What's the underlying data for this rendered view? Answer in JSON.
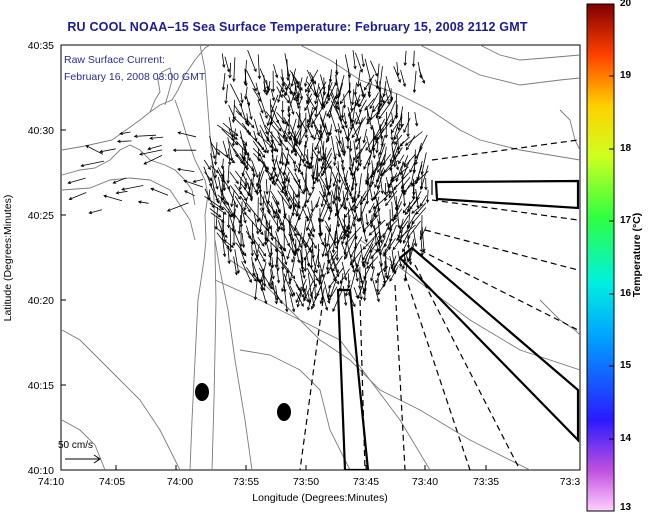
{
  "title": "RU COOL  NOAA–15  Sea Surface Temperature:  February 15, 2008 2112 GMT",
  "info": {
    "line1": "Raw Surface Current:",
    "line2": "February 16, 2008 03:00 GMT"
  },
  "axes": {
    "xlabel": "Longitude (Degrees:Minutes)",
    "ylabel": "Latitude (Degrees:Minutes)",
    "x_ticks": [
      "74:10",
      "74:05",
      "74:00",
      "73:55",
      "73:50",
      "73:45",
      "73:40",
      "73:35",
      "73:3"
    ],
    "y_ticks": [
      "40:35",
      "40:30",
      "40:25",
      "40:20",
      "40:15",
      "40:10"
    ]
  },
  "scale": {
    "label": "50 cm/s"
  },
  "colorbar": {
    "label": "Temperature (°C)",
    "min": 13,
    "max": 20,
    "ticks": [
      "20",
      "19",
      "18",
      "17",
      "16",
      "15",
      "14",
      "13"
    ]
  },
  "colors": {
    "title": "#1a1a9a",
    "info": "#2a2a9a",
    "coast": "#707070"
  }
}
